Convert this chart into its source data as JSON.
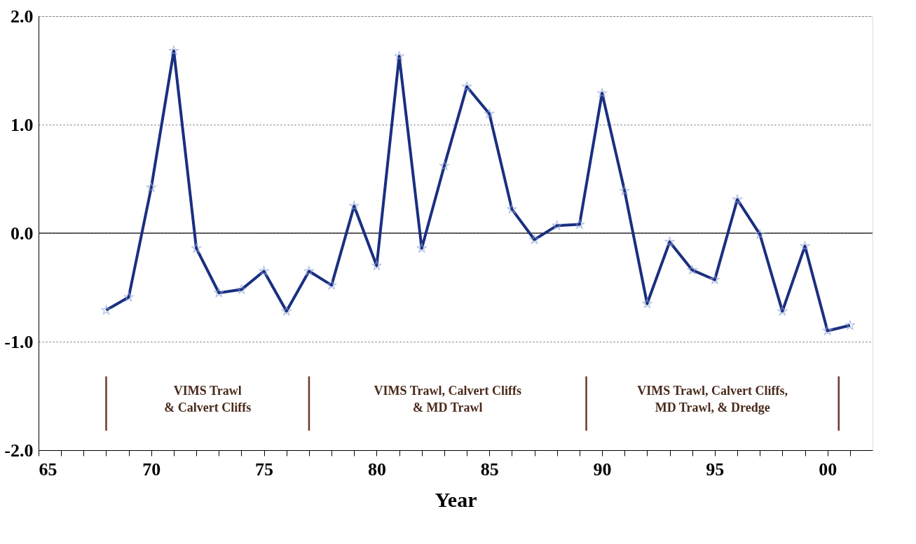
{
  "chart_data": {
    "type": "line",
    "xlabel": "Year",
    "x": [
      1968,
      1969,
      1970,
      1971,
      1972,
      1973,
      1974,
      1975,
      1976,
      1977,
      1978,
      1979,
      1980,
      1981,
      1982,
      1983,
      1984,
      1985,
      1986,
      1987,
      1988,
      1989,
      1990,
      1991,
      1992,
      1993,
      1994,
      1995,
      1996,
      1997,
      1998,
      1999,
      2000,
      2001
    ],
    "series": [
      {
        "color": "#1a2f80",
        "values": [
          -0.71,
          -0.59,
          0.42,
          1.68,
          -0.14,
          -0.55,
          -0.52,
          -0.35,
          -0.72,
          -0.35,
          -0.48,
          0.25,
          -0.3,
          1.63,
          -0.14,
          0.62,
          1.35,
          1.1,
          0.22,
          -0.06,
          0.07,
          0.08,
          1.29,
          0.39,
          -0.65,
          -0.08,
          -0.34,
          -0.43,
          0.31,
          -0.01,
          -0.72,
          -0.12,
          -0.9,
          -0.85
        ]
      }
    ],
    "xlim": [
      1965,
      2002
    ],
    "xticks": [
      {
        "value": 1965,
        "label": "65"
      },
      {
        "value": 1966,
        "label": null
      },
      {
        "value": 1967,
        "label": null
      },
      {
        "value": 1968,
        "label": null
      },
      {
        "value": 1969,
        "label": null
      },
      {
        "value": 1970,
        "label": "70"
      },
      {
        "value": 1971,
        "label": null
      },
      {
        "value": 1972,
        "label": null
      },
      {
        "value": 1973,
        "label": null
      },
      {
        "value": 1974,
        "label": null
      },
      {
        "value": 1975,
        "label": "75"
      },
      {
        "value": 1976,
        "label": null
      },
      {
        "value": 1977,
        "label": null
      },
      {
        "value": 1978,
        "label": null
      },
      {
        "value": 1979,
        "label": null
      },
      {
        "value": 1980,
        "label": "80"
      },
      {
        "value": 1981,
        "label": null
      },
      {
        "value": 1982,
        "label": null
      },
      {
        "value": 1983,
        "label": null
      },
      {
        "value": 1984,
        "label": null
      },
      {
        "value": 1985,
        "label": "85"
      },
      {
        "value": 1986,
        "label": null
      },
      {
        "value": 1987,
        "label": null
      },
      {
        "value": 1988,
        "label": null
      },
      {
        "value": 1989,
        "label": null
      },
      {
        "value": 1990,
        "label": "90"
      },
      {
        "value": 1991,
        "label": null
      },
      {
        "value": 1992,
        "label": null
      },
      {
        "value": 1993,
        "label": null
      },
      {
        "value": 1994,
        "label": null
      },
      {
        "value": 1995,
        "label": "95"
      },
      {
        "value": 1996,
        "label": null
      },
      {
        "value": 1997,
        "label": null
      },
      {
        "value": 1998,
        "label": null
      },
      {
        "value": 1999,
        "label": null
      },
      {
        "value": 2000,
        "label": "00"
      },
      {
        "value": 2001,
        "label": null
      }
    ],
    "ylim": [
      -2,
      2
    ],
    "yticks": [
      {
        "value": -2,
        "label": "-2.0"
      },
      {
        "value": -1,
        "label": "-1.0"
      },
      {
        "value": 0,
        "label": "0.0"
      },
      {
        "value": 1,
        "label": "1.0"
      },
      {
        "value": 2,
        "label": "2.0"
      }
    ],
    "grid": "y",
    "marker": "star",
    "line_style": "solid",
    "ref_lines": [
      {
        "axis": "y",
        "value": 0,
        "color": "#333333",
        "line_style": "solid"
      },
      {
        "axis": "x",
        "value": 1968,
        "color": "#6b3a2a",
        "line_style": "solid"
      },
      {
        "axis": "x",
        "value": 1977,
        "color": "#6b3a2a",
        "line_style": "solid"
      },
      {
        "axis": "x",
        "value": 1989.3,
        "color": "#6b3a2a",
        "line_style": "solid"
      },
      {
        "axis": "x",
        "value": 2000.5,
        "color": "#6b3a2a",
        "line_style": "solid"
      }
    ],
    "annotations": [
      "VIMS Trawl\n& Calvert Cliffs",
      "VIMS Trawl, Calvert Cliffs\n& MD Trawl",
      "VIMS Trawl, Calvert Cliffs,\nMD Trawl, & Dredge"
    ]
  }
}
